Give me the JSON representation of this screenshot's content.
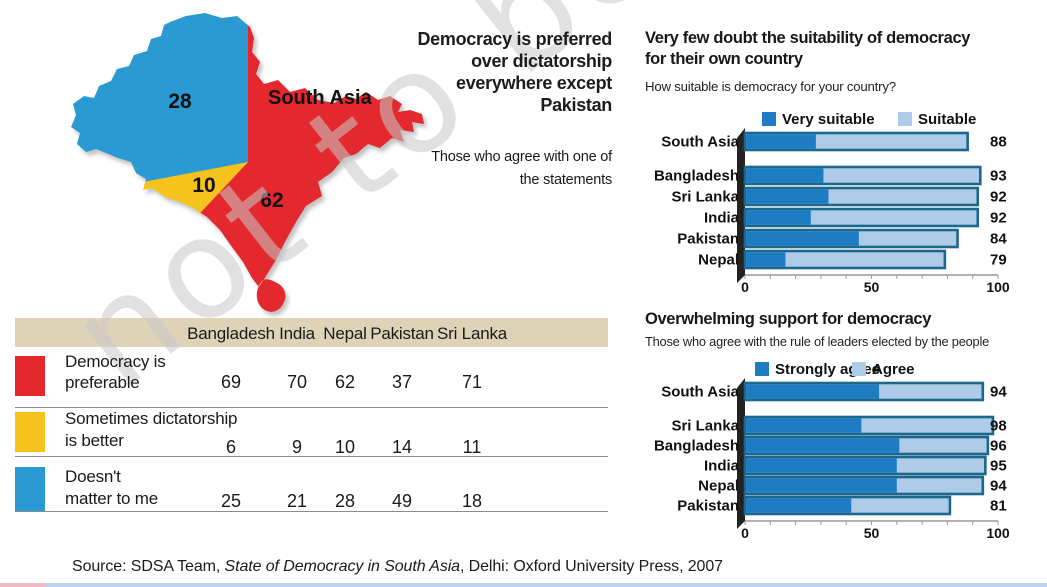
{
  "watermark_text": "not to be",
  "colors": {
    "map_red": "#e3292d",
    "map_yellow": "#f6c31e",
    "map_blue": "#2b9ad2",
    "bar_strong_blue": "#1e7dc2",
    "bar_light_blue": "#aecbe8",
    "bar_border": "#1c678c",
    "table_header_bg": "#ded3b6",
    "spine_black": "#222222",
    "strip_blue": "#b9d3ea",
    "strip_pink": "#eebcc2"
  },
  "headline": {
    "lines": [
      "Democracy is preferred",
      "over  dictatorship",
      "everywhere except",
      "Pakistan"
    ],
    "subtitle_lines": [
      "Those who agree with one of",
      "the statements"
    ]
  },
  "source": {
    "prefix": "Source: SDSA Team, ",
    "italic": "State of Democracy in South Asia",
    "suffix": ", Delhi: Oxford University Press, 2007"
  },
  "chart_data": [
    {
      "id": "map-pie",
      "type": "pie",
      "region_label": "South Asia",
      "note": "map of South Asia shaded as pie: share agreeing with each statement",
      "slices": [
        {
          "label": "Democracy is preferable",
          "value": 62,
          "color": "#e3292d"
        },
        {
          "label": "Sometimes dictatorship is better",
          "value": 10,
          "color": "#f6c31e"
        },
        {
          "label": "Doesn't matter to me",
          "value": 28,
          "color": "#2b9ad2"
        }
      ]
    },
    {
      "id": "suitability",
      "type": "bar",
      "stacked": true,
      "orientation": "horizontal",
      "title_lines": [
        "Very few doubt the suitability of democracy",
        "for their own country"
      ],
      "subtitle": "How suitable is democracy for your country?",
      "categories": [
        "South Asia",
        "Bangladesh",
        "Sri Lanka",
        "India",
        "Pakistan",
        "Nepal"
      ],
      "series": [
        {
          "name": "Very suitable",
          "color": "#1e7dc2",
          "values": [
            28,
            31,
            33,
            26,
            45,
            16
          ]
        },
        {
          "name": "Suitable",
          "color": "#aecbe8",
          "values": [
            60,
            62,
            59,
            66,
            39,
            63
          ]
        }
      ],
      "totals": [
        88,
        93,
        92,
        92,
        84,
        79
      ],
      "xlim": [
        0,
        100
      ],
      "xticks": [
        0,
        50,
        100
      ],
      "legend_position": "top"
    },
    {
      "id": "support",
      "type": "bar",
      "stacked": true,
      "orientation": "horizontal",
      "title_lines": [
        "Overwhelming support for democracy"
      ],
      "subtitle": "Those who agree with the rule of leaders elected by the people",
      "categories": [
        "South Asia",
        "Sri Lanka",
        "Bangladesh",
        "India",
        "Nepal",
        "Pakistan"
      ],
      "series": [
        {
          "name": "Strongly agree",
          "color": "#1e7dc2",
          "values": [
            53,
            46,
            61,
            60,
            60,
            42
          ]
        },
        {
          "name": "Agree",
          "color": "#aecbe8",
          "values": [
            41,
            52,
            35,
            35,
            34,
            39
          ]
        }
      ],
      "totals": [
        94,
        98,
        96,
        95,
        94,
        81
      ],
      "xlim": [
        0,
        100
      ],
      "xticks": [
        0,
        50,
        100
      ],
      "legend_position": "top"
    },
    {
      "id": "country-table",
      "type": "table",
      "columns": [
        "Bangladesh",
        "India",
        "Nepal",
        "Pakistan",
        "Sri Lanka"
      ],
      "rows": [
        {
          "label_lines": [
            "Democracy is",
            "preferable"
          ],
          "color": "#e3292d",
          "values": [
            69,
            70,
            62,
            37,
            71
          ]
        },
        {
          "label_lines": [
            "Sometimes dictatorship",
            "is better"
          ],
          "color": "#f6c31e",
          "values": [
            6,
            9,
            10,
            14,
            11
          ]
        },
        {
          "label_lines": [
            "Doesn't",
            "matter to me"
          ],
          "color": "#2b9ad2",
          "values": [
            25,
            21,
            28,
            49,
            18
          ]
        }
      ]
    }
  ]
}
